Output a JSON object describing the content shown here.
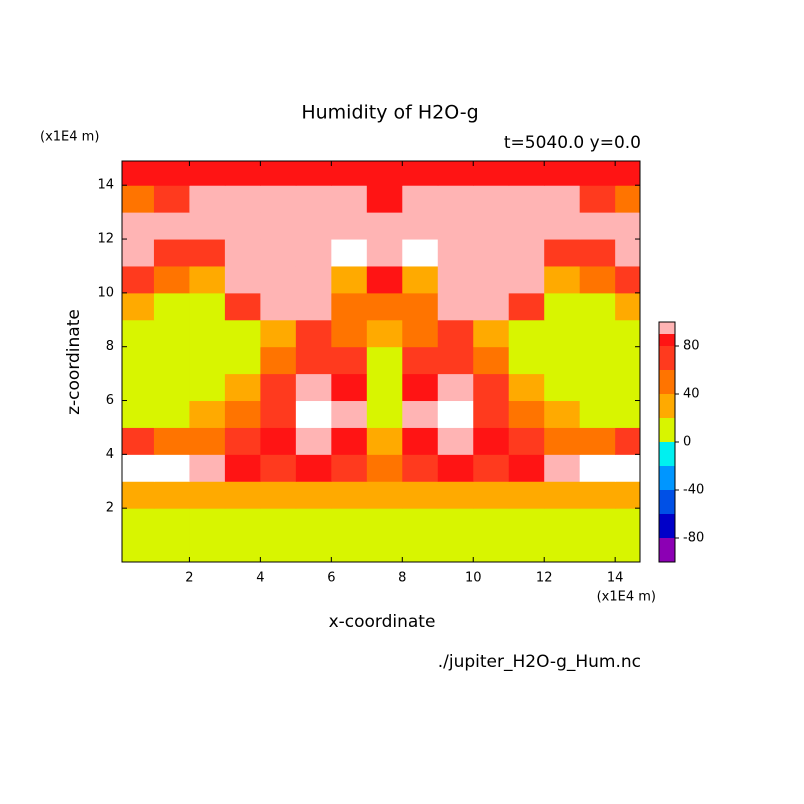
{
  "chart_data": {
    "type": "contour",
    "title": "Humidity of H2O-g",
    "subtitle": "t=5040.0 y=0.0",
    "x_label": "x-coordinate",
    "y_label": "z-coordinate",
    "x_unit": "(x1E4 m)",
    "y_unit": "(x1E4 m)",
    "source": "./jupiter_H2O-g_Hum.nc",
    "xlim": [
      0.1,
      14.7
    ],
    "ylim": [
      0,
      14.9
    ],
    "xticks": [
      2,
      4,
      6,
      8,
      10,
      12,
      14
    ],
    "yticks": [
      2,
      4,
      6,
      8,
      10,
      12,
      14
    ],
    "x": [
      0.5,
      1.5,
      2.5,
      3.5,
      4.5,
      5.5,
      6.5,
      7.5,
      8.5,
      9.5,
      10.5,
      11.5,
      12.5,
      13.5,
      14.5
    ],
    "y": [
      0.5,
      1.5,
      2.5,
      3.5,
      4.5,
      5.5,
      6.5,
      7.5,
      8.5,
      9.5,
      10.5,
      11.5,
      12.5,
      13.5,
      14.5
    ],
    "z": [
      [
        10,
        10,
        10,
        10,
        10,
        10,
        10,
        10,
        10,
        10,
        10,
        10,
        10,
        10,
        10
      ],
      [
        10,
        10,
        10,
        10,
        10,
        10,
        10,
        10,
        10,
        10,
        10,
        10,
        10,
        10,
        10
      ],
      [
        30,
        30,
        30,
        30,
        30,
        30,
        30,
        30,
        30,
        30,
        30,
        30,
        30,
        30,
        30
      ],
      [
        110,
        110,
        95,
        85,
        70,
        85,
        70,
        50,
        70,
        85,
        70,
        85,
        95,
        110,
        110
      ],
      [
        70,
        50,
        50,
        70,
        85,
        95,
        85,
        30,
        85,
        95,
        85,
        70,
        50,
        50,
        70
      ],
      [
        10,
        10,
        30,
        50,
        70,
        110,
        95,
        10,
        95,
        110,
        70,
        50,
        30,
        10,
        10
      ],
      [
        10,
        10,
        10,
        30,
        70,
        95,
        85,
        10,
        85,
        95,
        70,
        30,
        10,
        10,
        10
      ],
      [
        10,
        10,
        10,
        10,
        50,
        70,
        70,
        10,
        70,
        70,
        50,
        10,
        10,
        10,
        10
      ],
      [
        10,
        10,
        10,
        10,
        30,
        70,
        50,
        30,
        50,
        70,
        30,
        10,
        10,
        10,
        10
      ],
      [
        30,
        10,
        10,
        70,
        95,
        95,
        50,
        50,
        50,
        95,
        95,
        70,
        10,
        10,
        30
      ],
      [
        70,
        50,
        30,
        95,
        95,
        95,
        30,
        85,
        30,
        95,
        95,
        95,
        30,
        50,
        70
      ],
      [
        95,
        70,
        70,
        95,
        95,
        95,
        110,
        95,
        110,
        95,
        95,
        95,
        70,
        70,
        95
      ],
      [
        95,
        95,
        95,
        95,
        95,
        95,
        95,
        95,
        95,
        95,
        95,
        95,
        95,
        95,
        95
      ],
      [
        50,
        70,
        95,
        95,
        95,
        95,
        95,
        85,
        95,
        95,
        95,
        95,
        95,
        70,
        50
      ],
      [
        85,
        85,
        85,
        85,
        85,
        85,
        85,
        85,
        85,
        85,
        85,
        85,
        85,
        85,
        85
      ]
    ],
    "levels": [
      -100,
      -80,
      -60,
      -40,
      -20,
      0,
      20,
      40,
      60,
      80,
      90,
      100
    ],
    "colors": [
      "#8c00b4",
      "#0000c8",
      "#0050e6",
      "#0096ff",
      "#00f0f0",
      "#d8f500",
      "#ffaa00",
      "#ff7400",
      "#ff3a1e",
      "#ff1414",
      "#ffb4b4"
    ],
    "over_color": "#ffffff",
    "cbar_ticks": [
      -80,
      -40,
      0,
      40,
      80
    ]
  }
}
